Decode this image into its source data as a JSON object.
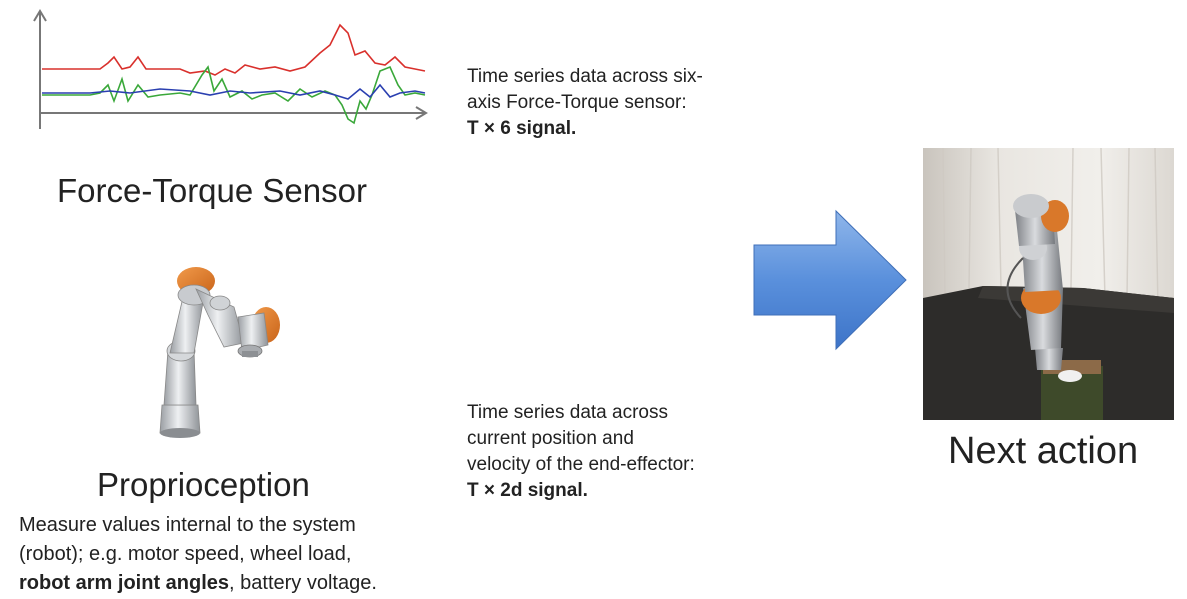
{
  "force_torque": {
    "title": "Force-Torque Sensor",
    "description_line1": "Time series data across six-",
    "description_line2": "axis Force-Torque sensor:",
    "signal": "T × 6 signal."
  },
  "proprioception": {
    "title": "Proprioception",
    "description_line1": "Time series data across",
    "description_line2": "current position and",
    "description_line3": "velocity of the end-effector:",
    "signal": "T × 2d signal.",
    "definition_line1": "Measure values internal to the system",
    "definition_line2": "(robot); e.g. motor speed, wheel load,",
    "definition_bold": "robot arm joint angles",
    "definition_rest": ", battery voltage."
  },
  "output": {
    "title": "Next action"
  },
  "colors": {
    "signal_red": "#d9302c",
    "signal_green": "#3aa83a",
    "signal_blue": "#2a3fb0",
    "arrow_blue": "#4a86d8",
    "arm_orange": "#e07a25"
  },
  "icons": {
    "chart": "line-chart-icon",
    "robot_arm": "robot-arm-icon",
    "arrow": "right-arrow-icon",
    "photo": "robot-photo"
  }
}
